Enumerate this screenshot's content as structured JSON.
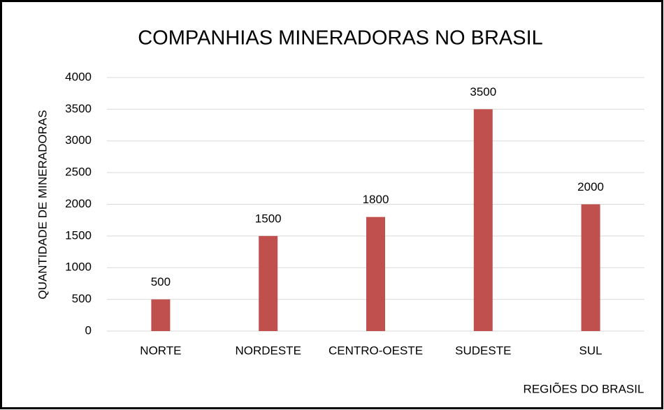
{
  "chart_data": {
    "type": "bar",
    "title": "COMPANHIAS MINERADORAS NO BRASIL",
    "x_label": "REGIÕES DO BRASIL",
    "y_label": "QUANTIDADE DE MINERADORAS",
    "categories": [
      "NORTE",
      "NORDESTE",
      "CENTRO-OESTE",
      "SUDESTE",
      "SUL"
    ],
    "values": [
      500,
      1500,
      1800,
      3500,
      2000
    ],
    "color": "#c0504d",
    "ylim": [
      0,
      4000
    ],
    "yticks": [
      0,
      500,
      1000,
      1500,
      2000,
      2500,
      3000,
      3500,
      4000
    ],
    "grid": true
  }
}
